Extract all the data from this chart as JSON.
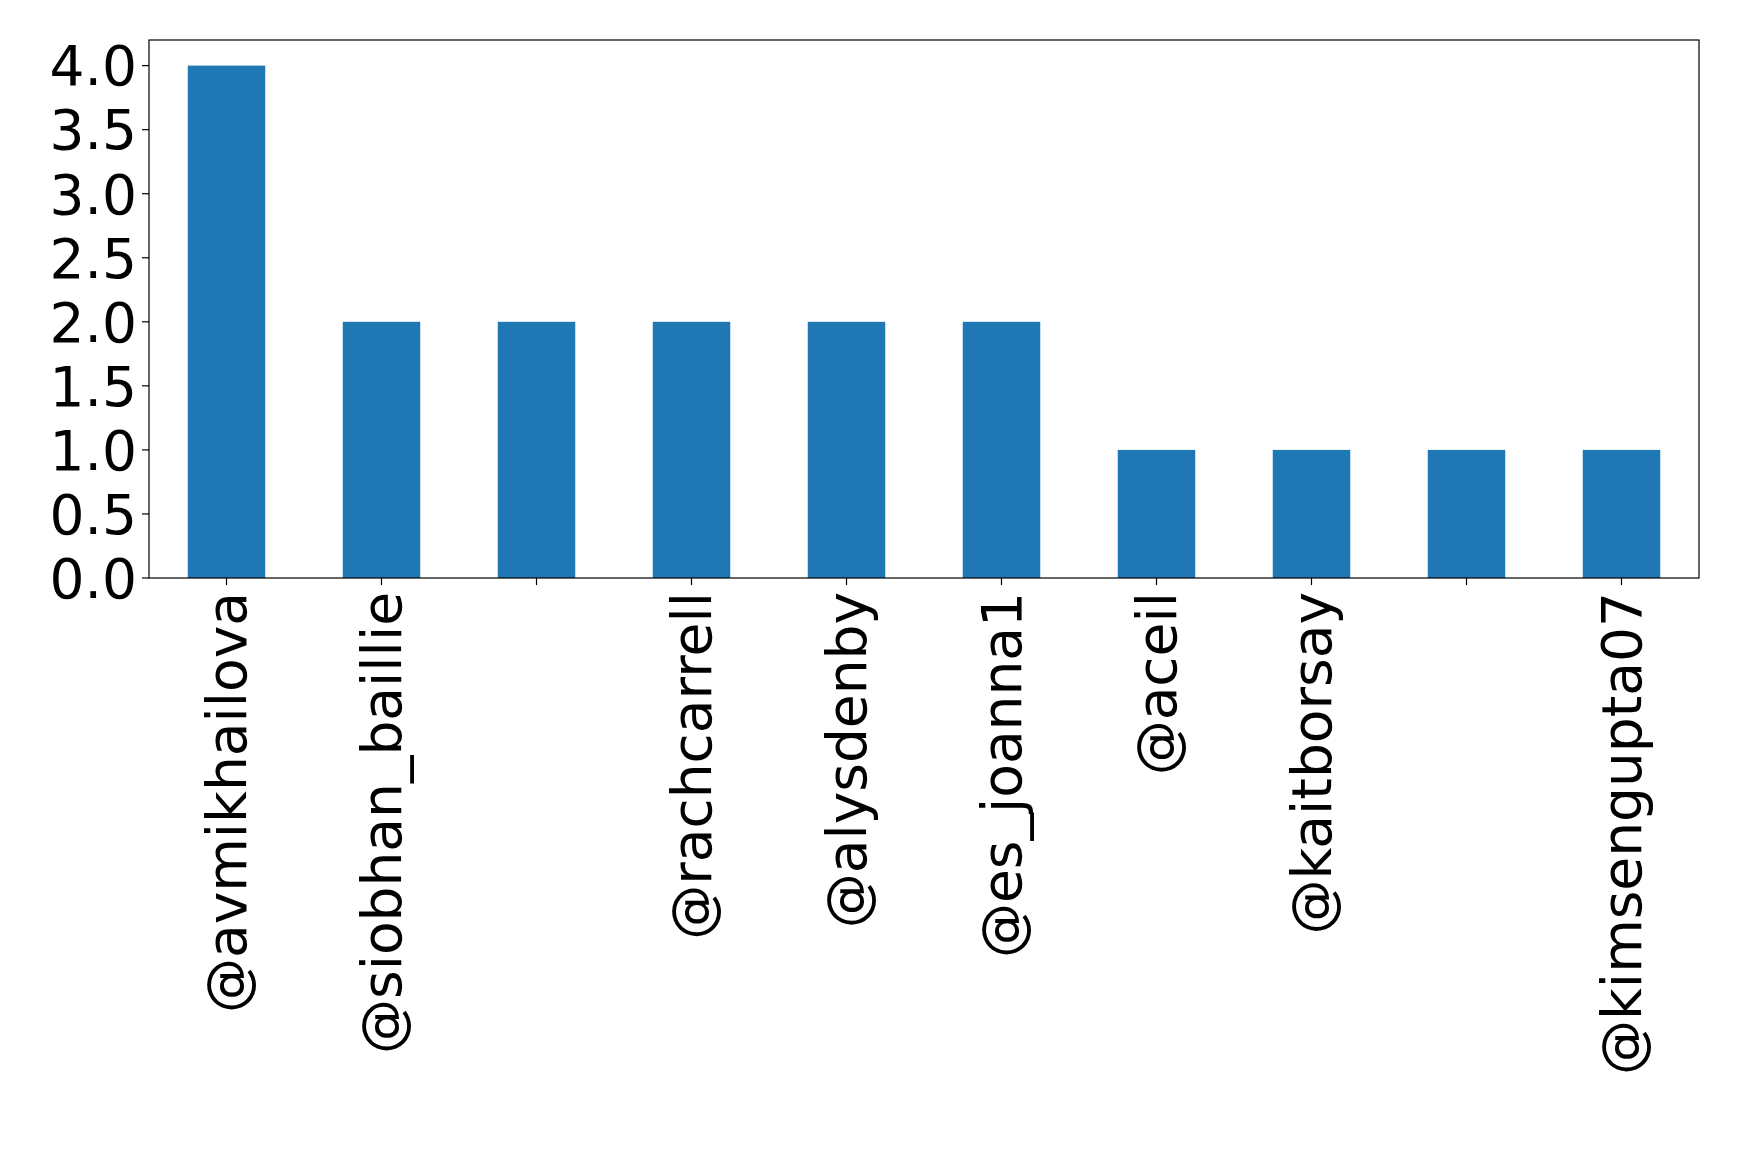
{
  "chart_data": {
    "type": "bar",
    "categories": [
      "@avmikhailova",
      "@siobhan_baillie",
      null,
      "@rachcarrell",
      "@alysdenby",
      "@es_joanna1",
      "@aceil",
      "@kaitborsay",
      null,
      "@kimsengupta07"
    ],
    "values": [
      4,
      2,
      2,
      2,
      2,
      2,
      1,
      1,
      1,
      1
    ],
    "color": "#1f77b4",
    "ylim": [
      0,
      4.2
    ],
    "yticks": [
      {
        "value": 0,
        "label": "0.0"
      },
      {
        "value": 0.5,
        "label": "0.5"
      },
      {
        "value": 1,
        "label": "1.0"
      },
      {
        "value": 1.5,
        "label": "1.5"
      },
      {
        "value": 2,
        "label": "2.0"
      },
      {
        "value": 2.5,
        "label": "2.5"
      },
      {
        "value": 3,
        "label": "3.0"
      },
      {
        "value": 3.5,
        "label": "3.5"
      },
      {
        "value": 4,
        "label": "4.0"
      }
    ],
    "grid": false
  }
}
